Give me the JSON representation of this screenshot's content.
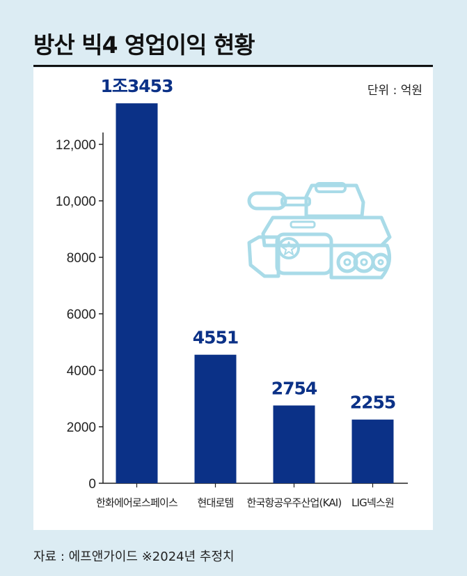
{
  "title": "방산 빅4 영업이익 현황",
  "unit": "단위 : 억원",
  "footer": "자료 : 에프앤가이드  ※2024년 추정치",
  "chart_data": {
    "type": "bar",
    "categories": [
      "한화에어로스페이스",
      "현대로템",
      "한국항공우주산업(KAI)",
      "LIG넥스원"
    ],
    "values": [
      13453,
      4551,
      2754,
      2255
    ],
    "data_labels": [
      "1조3453",
      "4551",
      "2754",
      "2255"
    ],
    "y_ticks": [
      0,
      2000,
      4000,
      6000,
      8000,
      10000,
      12000
    ],
    "y_tick_labels": [
      "0",
      "2000",
      "4000",
      "6000",
      "8000",
      "10,000",
      "12,000"
    ],
    "ylim": [
      0,
      14000
    ],
    "grid": false,
    "bar_color": "#0b3187"
  },
  "illustration": {
    "icon": "tank-icon",
    "color": "#a9dbe8"
  }
}
